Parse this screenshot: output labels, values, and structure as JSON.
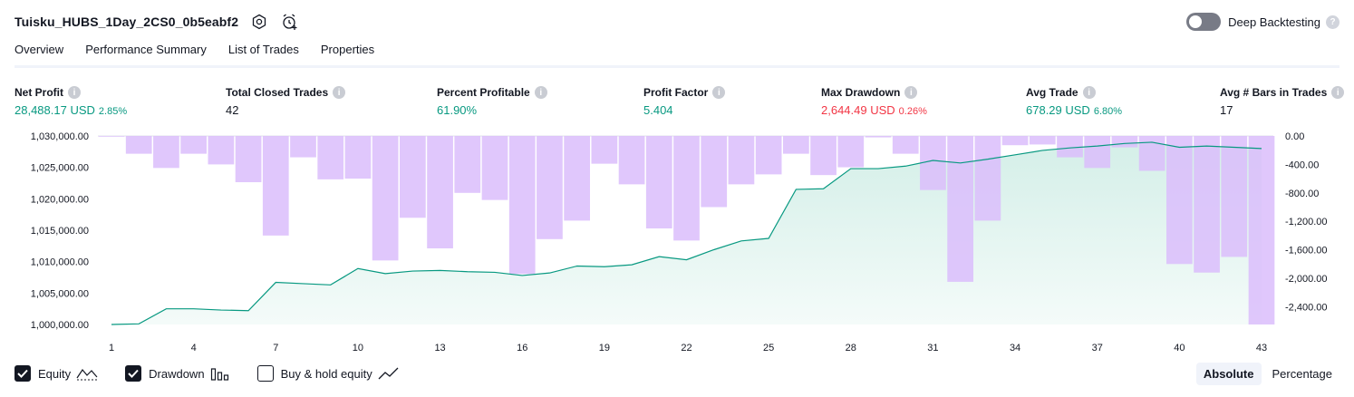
{
  "header": {
    "title": "Tuisku_HUBS_1Day_2CS0_0b5eabf2",
    "deep_backtesting_label": "Deep Backtesting"
  },
  "tabs": [
    {
      "label": "Overview"
    },
    {
      "label": "Performance Summary"
    },
    {
      "label": "List of Trades"
    },
    {
      "label": "Properties"
    }
  ],
  "metrics": {
    "net_profit": {
      "label": "Net Profit",
      "value": "28,488.17 USD",
      "pct": "2.85%"
    },
    "total_closed_trades": {
      "label": "Total Closed Trades",
      "value": "42"
    },
    "percent_profitable": {
      "label": "Percent Profitable",
      "value": "61.90%"
    },
    "profit_factor": {
      "label": "Profit Factor",
      "value": "5.404"
    },
    "max_drawdown": {
      "label": "Max Drawdown",
      "value": "2,644.49 USD",
      "pct": "0.26%"
    },
    "avg_trade": {
      "label": "Avg Trade",
      "value": "678.29 USD",
      "pct": "6.80%"
    },
    "avg_bars": {
      "label": "Avg # Bars in Trades",
      "value": "17"
    }
  },
  "legend": {
    "equity": "Equity",
    "drawdown": "Drawdown",
    "buy_hold": "Buy & hold equity"
  },
  "mode": {
    "absolute": "Absolute",
    "percentage": "Percentage"
  },
  "colors": {
    "equity_line": "#089981",
    "equity_fill": "#d4efe8",
    "drawdown_bar": "#dbbdfb",
    "drawdown_bar_overlap": "#b3b1e6"
  },
  "chart_data": {
    "type": "area",
    "x": [
      1,
      2,
      3,
      4,
      5,
      6,
      7,
      8,
      9,
      10,
      11,
      12,
      13,
      14,
      15,
      16,
      17,
      18,
      19,
      20,
      21,
      22,
      23,
      24,
      25,
      26,
      27,
      28,
      29,
      30,
      31,
      32,
      33,
      34,
      35,
      36,
      37,
      38,
      39,
      40,
      41,
      42,
      43
    ],
    "x_tick_labels": [
      "1",
      "4",
      "7",
      "10",
      "13",
      "16",
      "19",
      "22",
      "25",
      "28",
      "31",
      "34",
      "37",
      "40",
      "43"
    ],
    "series": [
      {
        "name": "Equity",
        "type": "area",
        "axis": "left",
        "values": [
          1000000,
          1000100,
          1002500,
          1002500,
          1002300,
          1002200,
          1006700,
          1006500,
          1006300,
          1008900,
          1008100,
          1008500,
          1008600,
          1008400,
          1008300,
          1007800,
          1008200,
          1009300,
          1009200,
          1009500,
          1010800,
          1010300,
          1011900,
          1013300,
          1013700,
          1021500,
          1021600,
          1024800,
          1024800,
          1025200,
          1026100,
          1025700,
          1026300,
          1027000,
          1027700,
          1028100,
          1028400,
          1028800,
          1029000,
          1028200,
          1028400,
          1028200,
          1028000
        ],
        "ylim": [
          1000000,
          1030000
        ],
        "y_tick_labels": [
          "1,000,000.00",
          "1,005,000.00",
          "1,010,000.00",
          "1,015,000.00",
          "1,020,000.00",
          "1,025,000.00",
          "1,030,000.00"
        ]
      },
      {
        "name": "Drawdown",
        "type": "bar",
        "axis": "right",
        "values": [
          -10,
          -250,
          -450,
          -250,
          -400,
          -650,
          -1400,
          -300,
          -610,
          -600,
          -1750,
          -1150,
          -1580,
          -800,
          -900,
          -1940,
          -1450,
          -1190,
          -390,
          -680,
          -1300,
          -1470,
          -1000,
          -680,
          -540,
          -250,
          -550,
          -440,
          -20,
          -250,
          -760,
          -2050,
          -1190,
          -130,
          -120,
          -300,
          -450,
          -160,
          -490,
          -1800,
          -1920,
          -1700,
          -2650
        ],
        "ylim": [
          -2650,
          0
        ],
        "y_tick_labels": [
          "0.00",
          "-400.00",
          "-800.00",
          "-1,200.00",
          "-1,600.00",
          "-2,000.00",
          "-2,400.00"
        ]
      }
    ]
  }
}
